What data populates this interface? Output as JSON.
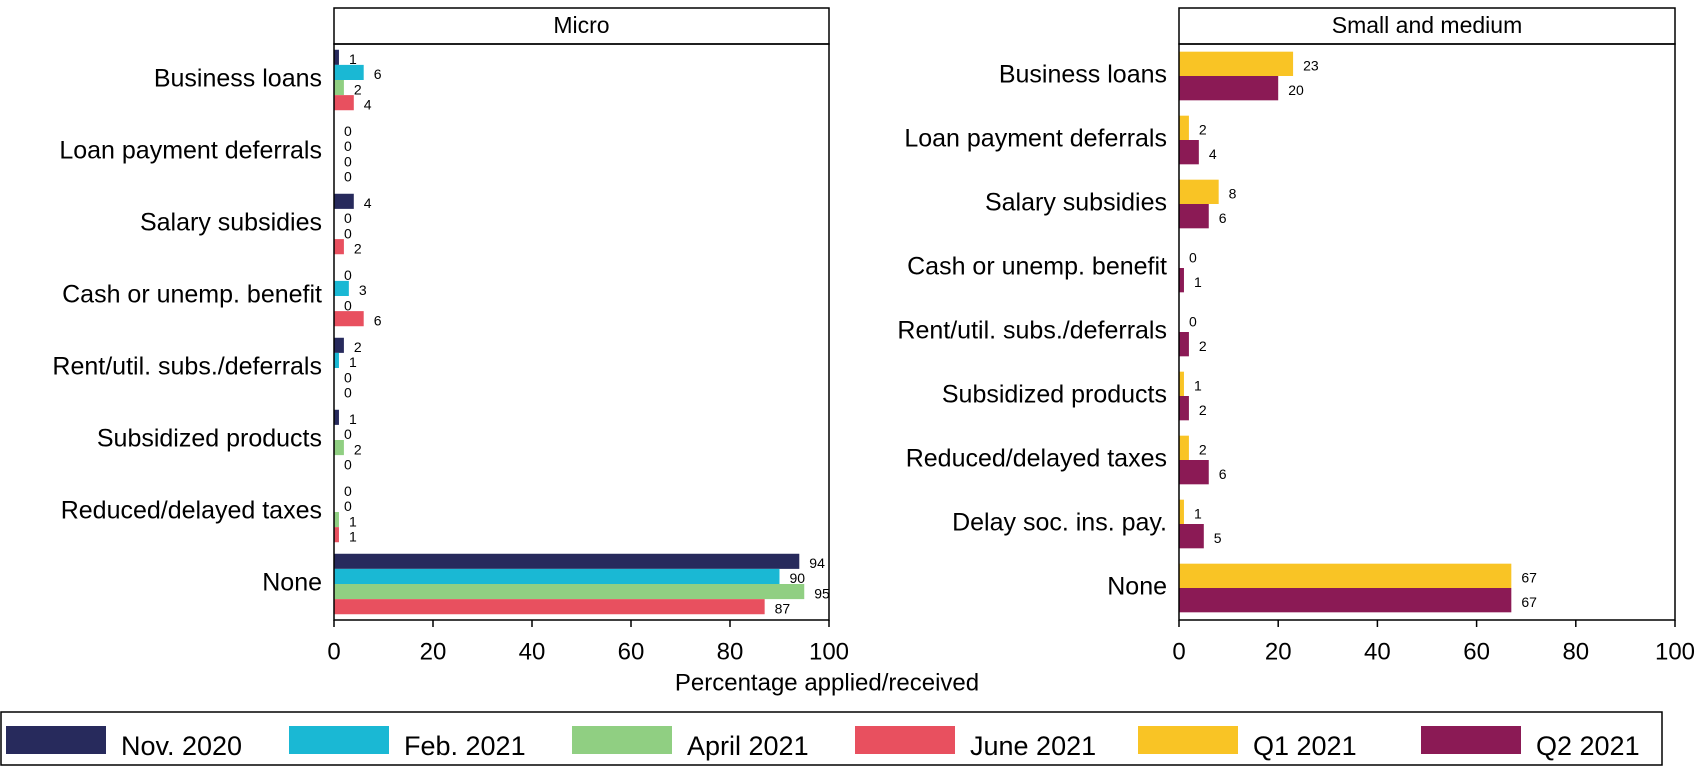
{
  "chart_data": [
    {
      "type": "bar",
      "orientation": "horizontal",
      "title": "Micro",
      "categories": [
        "Business loans",
        "Loan payment deferrals",
        "Salary subsidies",
        "Cash or unemp. benefit",
        "Rent/util. subs./deferrals",
        "Subsidized products",
        "Reduced/delayed taxes",
        "None"
      ],
      "series": [
        {
          "name": "Nov. 2020",
          "color": "#272a5c",
          "values": [
            1,
            0,
            4,
            0,
            2,
            1,
            0,
            94
          ]
        },
        {
          "name": "Feb. 2021",
          "color": "#1ab8d4",
          "values": [
            6,
            0,
            0,
            3,
            1,
            0,
            0,
            90
          ]
        },
        {
          "name": "April 2021",
          "color": "#90cf82",
          "values": [
            2,
            0,
            0,
            0,
            0,
            2,
            1,
            95
          ]
        },
        {
          "name": "June 2021",
          "color": "#e8505f",
          "values": [
            4,
            0,
            2,
            6,
            0,
            0,
            1,
            87
          ]
        }
      ],
      "xlim": [
        0,
        100
      ],
      "xticks": [
        0,
        20,
        40,
        60,
        80,
        100
      ],
      "xlabel": "Percentage applied/received"
    },
    {
      "type": "bar",
      "orientation": "horizontal",
      "title": "Small and medium",
      "categories": [
        "Business loans",
        "Loan payment deferrals",
        "Salary subsidies",
        "Cash or unemp. benefit",
        "Rent/util. subs./deferrals",
        "Subsidized products",
        "Reduced/delayed taxes",
        "Delay soc. ins. pay.",
        "None"
      ],
      "series": [
        {
          "name": "Q1 2021",
          "color": "#f9c425",
          "values": [
            23,
            2,
            8,
            0,
            0,
            1,
            2,
            1,
            67
          ]
        },
        {
          "name": "Q2 2021",
          "color": "#8b1a55",
          "values": [
            20,
            4,
            6,
            1,
            2,
            2,
            6,
            5,
            67
          ]
        }
      ],
      "xlim": [
        0,
        100
      ],
      "xticks": [
        0,
        20,
        40,
        60,
        80,
        100
      ]
    }
  ]
}
